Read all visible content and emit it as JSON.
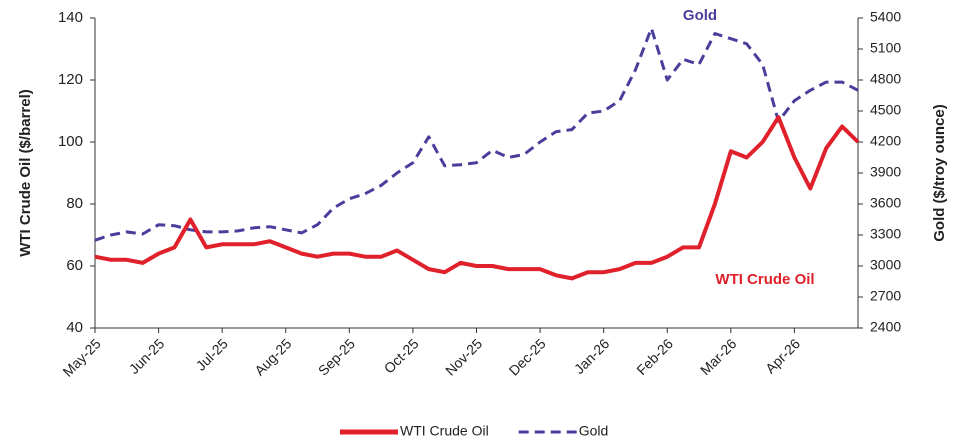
{
  "chart_data": {
    "type": "line",
    "categories": [
      "May-25",
      null,
      null,
      null,
      "Jun-25",
      null,
      null,
      null,
      "Jul-25",
      null,
      null,
      null,
      "Aug-25",
      null,
      null,
      null,
      "Sep-25",
      null,
      null,
      null,
      "Oct-25",
      null,
      null,
      null,
      "Nov-25",
      null,
      null,
      null,
      "Dec-25",
      null,
      null,
      null,
      "Jan-26",
      null,
      null,
      null,
      "Feb-26",
      null,
      null,
      null,
      "Mar-26",
      null,
      null,
      null,
      "Apr-26",
      null,
      null,
      null,
      null
    ],
    "series": [
      {
        "name": "WTI Crude Oil",
        "color": "#e0202a",
        "values": [
          63,
          62,
          62,
          61,
          64,
          66,
          75,
          66,
          67,
          67,
          67,
          68,
          66,
          64,
          63,
          64,
          64,
          63,
          63,
          65,
          62,
          59,
          58,
          61,
          60,
          60,
          59,
          59,
          59,
          57,
          56,
          58,
          58,
          59,
          61,
          61,
          63,
          66,
          66,
          80,
          97,
          95,
          100,
          108,
          95,
          85,
          98,
          105,
          100
        ]
      },
      {
        "name": "Gold",
        "color": "#4a3e9c",
        "axis": "y2",
        "values": [
          3250,
          3300,
          3330,
          3310,
          3400,
          3390,
          3350,
          3330,
          3330,
          3340,
          3370,
          3380,
          3350,
          3320,
          3400,
          3560,
          3650,
          3700,
          3780,
          3900,
          4000,
          4250,
          3970,
          3980,
          4000,
          4120,
          4050,
          4080,
          4200,
          4300,
          4320,
          4480,
          4500,
          4600,
          4900,
          5300,
          4800,
          5000,
          4950,
          5250,
          5200,
          5150,
          4950,
          4400,
          4600,
          4700,
          4780,
          4780,
          4700
        ]
      }
    ],
    "ylabel": "WTI Crude Oil ($/barrel)",
    "y2label": "Gold ($/troy ounce)",
    "annotations": [
      "Gold",
      "WTI Crude Oil"
    ],
    "ylim": [
      40,
      140
    ],
    "yticks": [
      40,
      60,
      80,
      100,
      120,
      140
    ],
    "y2lim": [
      2400,
      5400
    ],
    "y2ticks": [
      2400,
      2700,
      3000,
      3300,
      3600,
      3900,
      4200,
      4500,
      4800,
      5100,
      5400
    ],
    "legend": "bottom"
  }
}
